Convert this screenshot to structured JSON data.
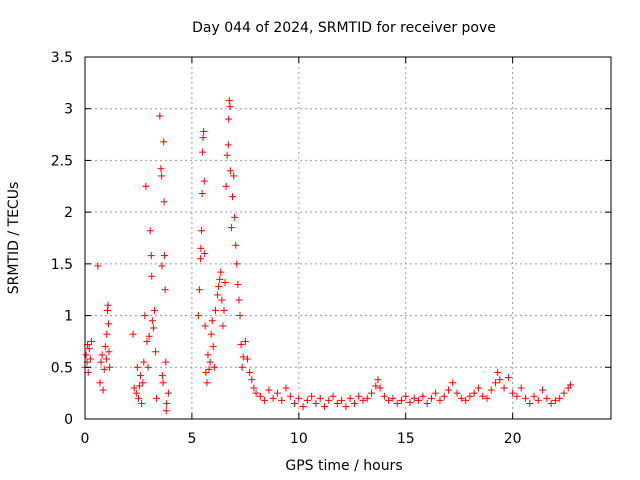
{
  "chart_data": {
    "type": "scatter",
    "title": "Day 044 of 2024, SRMTID for receiver pove",
    "xlabel": "GPS time / hours",
    "ylabel": "SRMTID / TECUs",
    "xlim": [
      0,
      24.6
    ],
    "ylim": [
      0,
      3.5
    ],
    "xticks": [
      0,
      5,
      10,
      15,
      20
    ],
    "xtick_labels": [
      "0",
      "5",
      "10",
      "15",
      "20"
    ],
    "yticks": [
      0,
      0.5,
      1,
      1.5,
      2,
      2.5,
      3,
      3.5
    ],
    "ytick_labels": [
      "0",
      "0.5",
      "1",
      "1.5",
      "2",
      "2.5",
      "3",
      "3.5"
    ],
    "grid": true,
    "legend": "none",
    "marker": "+",
    "colors": {
      "series": "#ff0000",
      "grid": "#9a9a9a",
      "axis": "#000000"
    },
    "series": [
      {
        "name": "SRMTID",
        "points": [
          [
            0.0,
            0.5
          ],
          [
            0.05,
            0.62
          ],
          [
            0.1,
            0.55
          ],
          [
            0.12,
            0.72
          ],
          [
            0.15,
            0.45
          ],
          [
            0.2,
            0.68
          ],
          [
            0.25,
            0.58
          ],
          [
            0.3,
            0.75
          ],
          [
            0.6,
            1.48
          ],
          [
            0.7,
            0.35
          ],
          [
            0.75,
            0.55
          ],
          [
            0.8,
            0.62
          ],
          [
            0.85,
            0.28
          ],
          [
            0.9,
            0.48
          ],
          [
            0.95,
            0.7
          ],
          [
            1.0,
            0.58
          ],
          [
            1.02,
            0.82
          ],
          [
            1.05,
            1.05
          ],
          [
            1.08,
            1.1
          ],
          [
            1.1,
            0.92
          ],
          [
            1.12,
            0.65
          ],
          [
            1.15,
            0.5
          ],
          [
            2.25,
            0.82
          ],
          [
            2.3,
            0.3
          ],
          [
            2.4,
            0.25
          ],
          [
            2.45,
            0.5
          ],
          [
            2.5,
            0.2
          ],
          [
            2.55,
            0.32
          ],
          [
            2.6,
            0.42
          ],
          [
            2.65,
            0.15
          ],
          [
            2.7,
            0.35
          ],
          [
            2.75,
            0.55
          ],
          [
            2.8,
            1.0
          ],
          [
            2.85,
            2.25
          ],
          [
            2.9,
            0.75
          ],
          [
            2.95,
            0.5
          ],
          [
            3.0,
            0.8
          ],
          [
            3.05,
            1.82
          ],
          [
            3.1,
            1.58
          ],
          [
            3.12,
            1.38
          ],
          [
            3.15,
            0.95
          ],
          [
            3.2,
            0.88
          ],
          [
            3.25,
            1.05
          ],
          [
            3.3,
            0.65
          ],
          [
            3.35,
            0.2
          ],
          [
            3.5,
            2.93
          ],
          [
            3.55,
            2.42
          ],
          [
            3.58,
            2.35
          ],
          [
            3.6,
            1.48
          ],
          [
            3.62,
            0.42
          ],
          [
            3.65,
            0.35
          ],
          [
            3.68,
            2.68
          ],
          [
            3.7,
            2.1
          ],
          [
            3.72,
            1.58
          ],
          [
            3.75,
            1.25
          ],
          [
            3.78,
            0.55
          ],
          [
            3.8,
            0.08
          ],
          [
            3.82,
            0.15
          ],
          [
            3.9,
            0.25
          ],
          [
            5.3,
            1.0
          ],
          [
            5.35,
            1.25
          ],
          [
            5.4,
            1.55
          ],
          [
            5.42,
            1.65
          ],
          [
            5.45,
            1.82
          ],
          [
            5.48,
            2.18
          ],
          [
            5.5,
            2.58
          ],
          [
            5.52,
            2.72
          ],
          [
            5.55,
            2.78
          ],
          [
            5.58,
            2.3
          ],
          [
            5.6,
            1.6
          ],
          [
            5.62,
            0.9
          ],
          [
            5.65,
            0.45
          ],
          [
            5.7,
            0.35
          ],
          [
            5.75,
            0.62
          ],
          [
            5.8,
            0.48
          ],
          [
            5.85,
            0.55
          ],
          [
            5.9,
            0.82
          ],
          [
            5.95,
            0.95
          ],
          [
            6.0,
            0.7
          ],
          [
            6.05,
            0.5
          ],
          [
            6.1,
            1.05
          ],
          [
            6.2,
            1.2
          ],
          [
            6.25,
            1.28
          ],
          [
            6.3,
            1.35
          ],
          [
            6.35,
            1.42
          ],
          [
            6.4,
            1.15
          ],
          [
            6.45,
            0.9
          ],
          [
            6.5,
            1.05
          ],
          [
            6.55,
            1.32
          ],
          [
            6.6,
            2.25
          ],
          [
            6.65,
            2.55
          ],
          [
            6.7,
            2.65
          ],
          [
            6.72,
            2.9
          ],
          [
            6.75,
            3.08
          ],
          [
            6.78,
            3.02
          ],
          [
            6.8,
            2.4
          ],
          [
            6.85,
            1.85
          ],
          [
            6.9,
            2.15
          ],
          [
            6.95,
            2.35
          ],
          [
            7.0,
            1.95
          ],
          [
            7.05,
            1.68
          ],
          [
            7.1,
            1.5
          ],
          [
            7.15,
            1.3
          ],
          [
            7.2,
            1.15
          ],
          [
            7.25,
            1.0
          ],
          [
            7.3,
            0.72
          ],
          [
            7.35,
            0.5
          ],
          [
            7.4,
            0.6
          ],
          [
            7.5,
            0.75
          ],
          [
            7.6,
            0.58
          ],
          [
            7.7,
            0.45
          ],
          [
            7.8,
            0.38
          ],
          [
            7.9,
            0.3
          ],
          [
            8.0,
            0.25
          ],
          [
            8.2,
            0.22
          ],
          [
            8.4,
            0.18
          ],
          [
            8.6,
            0.28
          ],
          [
            8.8,
            0.2
          ],
          [
            9.0,
            0.25
          ],
          [
            9.2,
            0.18
          ],
          [
            9.4,
            0.3
          ],
          [
            9.6,
            0.22
          ],
          [
            9.8,
            0.15
          ],
          [
            10.0,
            0.2
          ],
          [
            10.2,
            0.12
          ],
          [
            10.4,
            0.18
          ],
          [
            10.6,
            0.22
          ],
          [
            10.8,
            0.15
          ],
          [
            11.0,
            0.2
          ],
          [
            11.2,
            0.12
          ],
          [
            11.4,
            0.18
          ],
          [
            11.6,
            0.22
          ],
          [
            11.8,
            0.15
          ],
          [
            12.0,
            0.18
          ],
          [
            12.2,
            0.12
          ],
          [
            12.4,
            0.2
          ],
          [
            12.6,
            0.15
          ],
          [
            12.8,
            0.22
          ],
          [
            13.0,
            0.18
          ],
          [
            13.2,
            0.2
          ],
          [
            13.4,
            0.25
          ],
          [
            13.6,
            0.32
          ],
          [
            13.7,
            0.38
          ],
          [
            13.8,
            0.3
          ],
          [
            14.0,
            0.22
          ],
          [
            14.2,
            0.18
          ],
          [
            14.4,
            0.2
          ],
          [
            14.6,
            0.15
          ],
          [
            14.8,
            0.18
          ],
          [
            15.0,
            0.22
          ],
          [
            15.2,
            0.16
          ],
          [
            15.4,
            0.2
          ],
          [
            15.6,
            0.18
          ],
          [
            15.8,
            0.22
          ],
          [
            16.0,
            0.15
          ],
          [
            16.2,
            0.2
          ],
          [
            16.4,
            0.25
          ],
          [
            16.6,
            0.18
          ],
          [
            16.8,
            0.22
          ],
          [
            17.0,
            0.28
          ],
          [
            17.2,
            0.35
          ],
          [
            17.4,
            0.25
          ],
          [
            17.6,
            0.2
          ],
          [
            17.8,
            0.18
          ],
          [
            18.0,
            0.22
          ],
          [
            18.2,
            0.25
          ],
          [
            18.4,
            0.3
          ],
          [
            18.6,
            0.22
          ],
          [
            18.8,
            0.2
          ],
          [
            19.0,
            0.28
          ],
          [
            19.2,
            0.35
          ],
          [
            19.3,
            0.45
          ],
          [
            19.4,
            0.38
          ],
          [
            19.6,
            0.3
          ],
          [
            19.8,
            0.4
          ],
          [
            20.0,
            0.25
          ],
          [
            20.2,
            0.22
          ],
          [
            20.4,
            0.3
          ],
          [
            20.6,
            0.2
          ],
          [
            20.8,
            0.15
          ],
          [
            21.0,
            0.22
          ],
          [
            21.2,
            0.18
          ],
          [
            21.4,
            0.28
          ],
          [
            21.6,
            0.2
          ],
          [
            21.8,
            0.15
          ],
          [
            22.0,
            0.18
          ],
          [
            22.2,
            0.2
          ],
          [
            22.4,
            0.25
          ],
          [
            22.6,
            0.3
          ],
          [
            22.7,
            0.33
          ]
        ]
      }
    ]
  }
}
